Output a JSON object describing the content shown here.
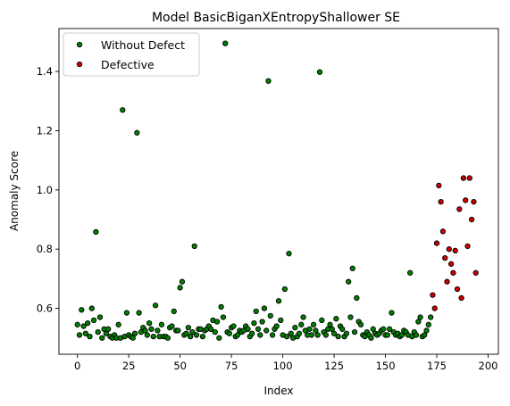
{
  "chart_data": {
    "type": "scatter",
    "title": "Model BasicBiganXEntropyShallower SE",
    "xlabel": "Index",
    "ylabel": "Anomaly Score",
    "xlim": [
      -9,
      205
    ],
    "ylim": [
      0.445,
      1.545
    ],
    "xticks": [
      0,
      25,
      50,
      75,
      100,
      125,
      150,
      175,
      200
    ],
    "yticks": [
      0.6,
      0.8,
      1.0,
      1.2,
      1.4
    ],
    "grid": false,
    "legend_position": "top-left",
    "series": [
      {
        "name": "Without Defect",
        "color": "#008000",
        "points": [
          [
            0,
            0.545
          ],
          [
            1,
            0.51
          ],
          [
            2,
            0.595
          ],
          [
            3,
            0.54
          ],
          [
            4,
            0.515
          ],
          [
            5,
            0.55
          ],
          [
            6,
            0.505
          ],
          [
            7,
            0.6
          ],
          [
            8,
            0.56
          ],
          [
            9,
            0.858
          ],
          [
            10,
            0.52
          ],
          [
            11,
            0.57
          ],
          [
            12,
            0.5
          ],
          [
            13,
            0.53
          ],
          [
            14,
            0.515
          ],
          [
            15,
            0.53
          ],
          [
            16,
            0.505
          ],
          [
            17,
            0.5
          ],
          [
            18,
            0.51
          ],
          [
            19,
            0.5
          ],
          [
            20,
            0.545
          ],
          [
            21,
            0.5
          ],
          [
            22,
            1.27
          ],
          [
            23,
            0.505
          ],
          [
            24,
            0.585
          ],
          [
            25,
            0.51
          ],
          [
            26,
            0.505
          ],
          [
            27,
            0.5
          ],
          [
            28,
            0.515
          ],
          [
            29,
            1.193
          ],
          [
            30,
            0.585
          ],
          [
            31,
            0.52
          ],
          [
            32,
            0.535
          ],
          [
            33,
            0.525
          ],
          [
            34,
            0.51
          ],
          [
            35,
            0.55
          ],
          [
            36,
            0.53
          ],
          [
            37,
            0.505
          ],
          [
            38,
            0.61
          ],
          [
            39,
            0.525
          ],
          [
            40,
            0.505
          ],
          [
            41,
            0.545
          ],
          [
            42,
            0.505
          ],
          [
            43,
            0.505
          ],
          [
            44,
            0.5
          ],
          [
            45,
            0.535
          ],
          [
            46,
            0.54
          ],
          [
            47,
            0.59
          ],
          [
            48,
            0.525
          ],
          [
            49,
            0.525
          ],
          [
            50,
            0.67
          ],
          [
            51,
            0.69
          ],
          [
            52,
            0.51
          ],
          [
            53,
            0.515
          ],
          [
            54,
            0.535
          ],
          [
            55,
            0.505
          ],
          [
            56,
            0.52
          ],
          [
            57,
            0.81
          ],
          [
            58,
            0.51
          ],
          [
            59,
            0.53
          ],
          [
            60,
            0.53
          ],
          [
            61,
            0.505
          ],
          [
            62,
            0.525
          ],
          [
            63,
            0.53
          ],
          [
            64,
            0.54
          ],
          [
            65,
            0.53
          ],
          [
            66,
            0.56
          ],
          [
            67,
            0.52
          ],
          [
            68,
            0.555
          ],
          [
            69,
            0.5
          ],
          [
            70,
            0.605
          ],
          [
            71,
            0.57
          ],
          [
            72,
            1.495
          ],
          [
            73,
            0.52
          ],
          [
            74,
            0.515
          ],
          [
            75,
            0.535
          ],
          [
            76,
            0.54
          ],
          [
            77,
            0.505
          ],
          [
            78,
            0.51
          ],
          [
            79,
            0.525
          ],
          [
            80,
            0.52
          ],
          [
            81,
            0.525
          ],
          [
            82,
            0.54
          ],
          [
            83,
            0.53
          ],
          [
            84,
            0.505
          ],
          [
            85,
            0.515
          ],
          [
            86,
            0.55
          ],
          [
            87,
            0.59
          ],
          [
            88,
            0.53
          ],
          [
            89,
            0.51
          ],
          [
            90,
            0.555
          ],
          [
            91,
            0.6
          ],
          [
            92,
            0.525
          ],
          [
            93,
            1.368
          ],
          [
            94,
            0.575
          ],
          [
            95,
            0.51
          ],
          [
            96,
            0.53
          ],
          [
            97,
            0.54
          ],
          [
            98,
            0.625
          ],
          [
            99,
            0.56
          ],
          [
            100,
            0.51
          ],
          [
            101,
            0.665
          ],
          [
            102,
            0.505
          ],
          [
            103,
            0.785
          ],
          [
            104,
            0.515
          ],
          [
            105,
            0.5
          ],
          [
            106,
            0.535
          ],
          [
            107,
            0.505
          ],
          [
            108,
            0.515
          ],
          [
            109,
            0.545
          ],
          [
            110,
            0.57
          ],
          [
            111,
            0.525
          ],
          [
            112,
            0.51
          ],
          [
            113,
            0.53
          ],
          [
            114,
            0.51
          ],
          [
            115,
            0.545
          ],
          [
            116,
            0.525
          ],
          [
            117,
            0.51
          ],
          [
            118,
            1.398
          ],
          [
            119,
            0.56
          ],
          [
            120,
            0.52
          ],
          [
            121,
            0.51
          ],
          [
            122,
            0.53
          ],
          [
            123,
            0.545
          ],
          [
            124,
            0.53
          ],
          [
            125,
            0.515
          ],
          [
            126,
            0.565
          ],
          [
            127,
            0.505
          ],
          [
            128,
            0.54
          ],
          [
            129,
            0.53
          ],
          [
            130,
            0.505
          ],
          [
            131,
            0.515
          ],
          [
            132,
            0.69
          ],
          [
            133,
            0.57
          ],
          [
            134,
            0.735
          ],
          [
            135,
            0.52
          ],
          [
            136,
            0.635
          ],
          [
            137,
            0.555
          ],
          [
            138,
            0.545
          ],
          [
            139,
            0.51
          ],
          [
            140,
            0.505
          ],
          [
            141,
            0.52
          ],
          [
            142,
            0.51
          ],
          [
            143,
            0.5
          ],
          [
            144,
            0.53
          ],
          [
            145,
            0.515
          ],
          [
            146,
            0.51
          ],
          [
            147,
            0.515
          ],
          [
            148,
            0.525
          ],
          [
            149,
            0.53
          ],
          [
            150,
            0.51
          ],
          [
            151,
            0.51
          ],
          [
            152,
            0.53
          ],
          [
            153,
            0.585
          ],
          [
            154,
            0.52
          ],
          [
            155,
            0.51
          ],
          [
            156,
            0.515
          ],
          [
            157,
            0.505
          ],
          [
            158,
            0.51
          ],
          [
            159,
            0.525
          ],
          [
            160,
            0.52
          ],
          [
            161,
            0.51
          ],
          [
            162,
            0.72
          ],
          [
            163,
            0.505
          ],
          [
            164,
            0.52
          ],
          [
            165,
            0.51
          ],
          [
            166,
            0.555
          ],
          [
            167,
            0.57
          ],
          [
            168,
            0.505
          ],
          [
            169,
            0.51
          ],
          [
            170,
            0.525
          ],
          [
            171,
            0.545
          ],
          [
            172,
            0.57
          ]
        ]
      },
      {
        "name": "Defective",
        "color": "#cc0000",
        "points": [
          [
            173,
            0.645
          ],
          [
            174,
            0.6
          ],
          [
            175,
            0.82
          ],
          [
            176,
            1.015
          ],
          [
            177,
            0.96
          ],
          [
            178,
            0.86
          ],
          [
            179,
            0.77
          ],
          [
            180,
            0.69
          ],
          [
            181,
            0.8
          ],
          [
            182,
            0.75
          ],
          [
            183,
            0.72
          ],
          [
            184,
            0.795
          ],
          [
            185,
            0.665
          ],
          [
            186,
            0.935
          ],
          [
            187,
            0.635
          ],
          [
            188,
            1.04
          ],
          [
            189,
            0.965
          ],
          [
            190,
            0.81
          ],
          [
            191,
            1.04
          ],
          [
            192,
            0.9
          ],
          [
            193,
            0.96
          ],
          [
            194,
            0.72
          ]
        ]
      }
    ]
  }
}
